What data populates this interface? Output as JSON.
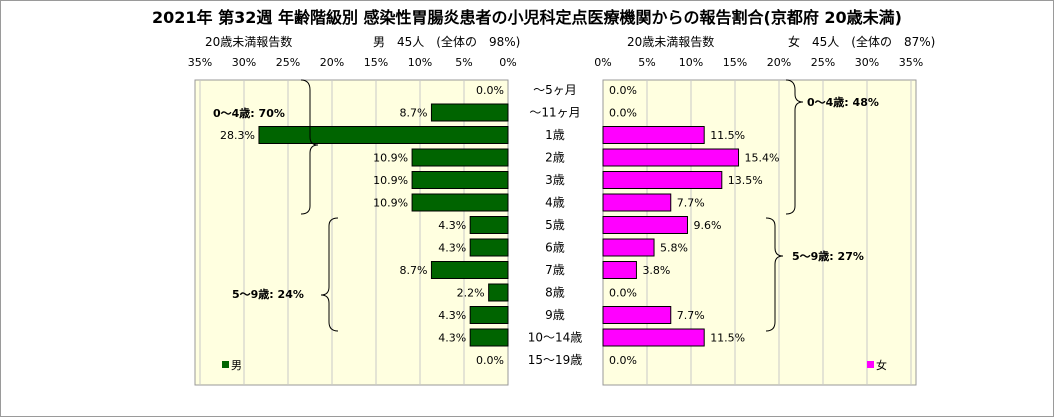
{
  "chart_data": {
    "type": "bar",
    "title": "2021年 第32週 年齢階級別 感染性胃腸炎患者の小児科定点医療機関からの報告割合(京都府 20歳未満)",
    "categories": [
      "～5ヶ月",
      "～11ヶ月",
      "1歳",
      "2歳",
      "3歳",
      "4歳",
      "5歳",
      "6歳",
      "7歳",
      "8歳",
      "9歳",
      "10～14歳",
      "15～19歳"
    ],
    "series": [
      {
        "name": "男",
        "color": "#006400",
        "values": [
          0.0,
          8.7,
          28.3,
          10.9,
          10.9,
          10.9,
          4.3,
          4.3,
          8.7,
          2.2,
          4.3,
          4.3,
          0.0
        ],
        "labels": [
          "0.0%",
          "8.7%",
          "28.3%",
          "10.9%",
          "10.9%",
          "10.9%",
          "4.3%",
          "4.3%",
          "8.7%",
          "2.2%",
          "4.3%",
          "4.3%",
          "0.0%"
        ]
      },
      {
        "name": "女",
        "color": "#ff00ff",
        "values": [
          0.0,
          0.0,
          11.5,
          15.4,
          13.5,
          7.7,
          9.6,
          5.8,
          3.8,
          0.0,
          7.7,
          11.5,
          0.0
        ],
        "labels": [
          "0.0%",
          "0.0%",
          "11.5%",
          "15.4%",
          "13.5%",
          "7.7%",
          "9.6%",
          "5.8%",
          "3.8%",
          "0.0%",
          "7.7%",
          "11.5%",
          "0.0%"
        ]
      }
    ],
    "xlim": [
      0,
      35
    ],
    "ticks": [
      "35%",
      "30%",
      "25%",
      "20%",
      "15%",
      "10%",
      "5%",
      "0%"
    ],
    "ticks_right": [
      "0%",
      "5%",
      "10%",
      "15%",
      "20%",
      "25%",
      "30%",
      "35%"
    ],
    "grid": true
  },
  "male": {
    "axis_label": "20歳未満報告数",
    "summary": "男　45人　(全体の　98%)"
  },
  "female": {
    "axis_label": "20歳未満報告数",
    "summary": "女　45人　(全体の　87%)"
  },
  "annotations": {
    "male_0_4": "0～4歳: 70%",
    "male_5_9": "5～9歳: 24%",
    "female_0_4": "0～4歳: 48%",
    "female_5_9": "5～9歳: 27%"
  },
  "legend": {
    "male": "男",
    "female": "女"
  }
}
